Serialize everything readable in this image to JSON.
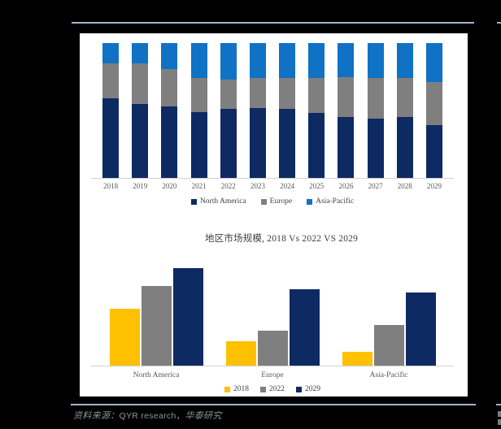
{
  "colors": {
    "page_background": "#000000",
    "panel_background": "#ffffff",
    "rule_line": "#a6b3cd",
    "axis_line": "#d2d2d2",
    "navy": "#0e2a63",
    "gray": "#7f7f7f",
    "blue": "#0f72c4",
    "yellow": "#fdc101",
    "label_text": "#595959",
    "title_text": "#404040",
    "source_text": "#8d939c"
  },
  "source_note": {
    "prefix": "资料来源：",
    "latin": "QYR research，",
    "suffix": "华泰研究"
  },
  "chart_data": [
    {
      "type": "bar",
      "variant": "stacked-100-percent-column",
      "title": "",
      "categories": [
        "2018",
        "2019",
        "2020",
        "2021",
        "2022",
        "2023",
        "2024",
        "2025",
        "2026",
        "2027",
        "2028",
        "2029"
      ],
      "series": [
        {
          "name": "North America",
          "color": "#0e2a63",
          "values": [
            59,
            55,
            53,
            49,
            51,
            52,
            51,
            48,
            45,
            44,
            45,
            39
          ]
        },
        {
          "name": "Europe",
          "color": "#7f7f7f",
          "values": [
            26,
            30,
            28,
            25,
            22,
            22,
            23,
            26,
            30,
            30,
            29,
            32
          ]
        },
        {
          "name": "Asia-Pacific",
          "color": "#0f72c4",
          "values": [
            15,
            15,
            19,
            26,
            27,
            26,
            26,
            26,
            25,
            26,
            26,
            29
          ]
        }
      ],
      "value_unit": "percent-share",
      "ylim": [
        0,
        100
      ],
      "grid": false,
      "y_axis_visible": false,
      "legend_position": "bottom"
    },
    {
      "type": "bar",
      "variant": "grouped-column",
      "title": "地区市场规模, 2018 Vs 2022 VS 2029",
      "categories": [
        "North America",
        "Europe",
        "Asia-Pacific"
      ],
      "series": [
        {
          "name": "2018",
          "color": "#fdc101",
          "values": [
            70,
            30,
            17
          ]
        },
        {
          "name": "2022",
          "color": "#7f7f7f",
          "values": [
            98,
            43,
            50
          ]
        },
        {
          "name": "2029",
          "color": "#0e2a63",
          "values": [
            120,
            94,
            90
          ]
        }
      ],
      "value_unit": "relative-index (no axis labels shown)",
      "ylim": [
        0,
        122
      ],
      "grid": false,
      "y_axis_visible": false,
      "legend_position": "bottom"
    }
  ]
}
